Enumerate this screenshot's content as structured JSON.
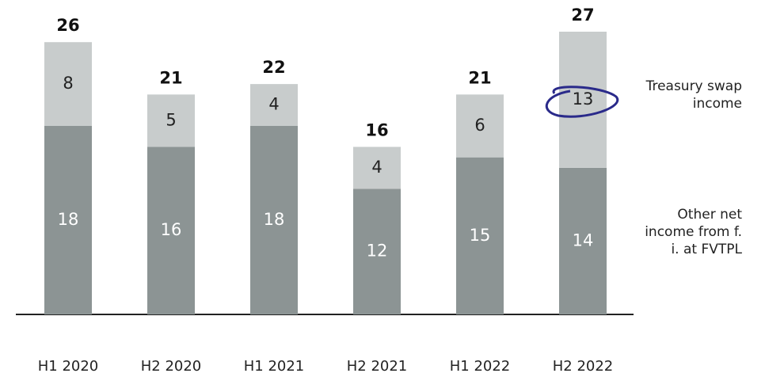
{
  "chart_data": {
    "type": "stacked-bar",
    "categories": [
      "H1 2020",
      "H2 2020",
      "H1 2021",
      "H2 2021",
      "H1 2022",
      "H2 2022"
    ],
    "series": [
      {
        "name": "Other net income from f. i. at FVTPL",
        "color": "#8c9494",
        "values": [
          18,
          16,
          18,
          12,
          15,
          14
        ]
      },
      {
        "name": "Treasury swap income",
        "color": "#c8cccc",
        "values": [
          8,
          5,
          4,
          4,
          6,
          13
        ]
      }
    ],
    "totals": [
      26,
      21,
      22,
      16,
      21,
      27
    ]
  }
}
